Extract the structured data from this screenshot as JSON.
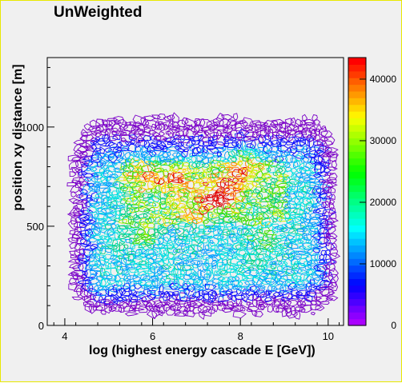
{
  "chart_data": {
    "type": "heatmap",
    "style": "contour",
    "title": "UnWeighted",
    "xlabel": "log (highest energy cascade E [GeV])",
    "ylabel": "position xy distance [m]",
    "xlim": [
      3.6,
      10.35
    ],
    "ylim": [
      0,
      1350
    ],
    "x_ticks": [
      "4",
      "6",
      "8",
      "10"
    ],
    "y_ticks": [
      "0",
      "500",
      "1000"
    ],
    "colorbar": {
      "range": [
        0,
        43500
      ],
      "ticks": [
        "0",
        "10000",
        "20000",
        "30000",
        "40000"
      ],
      "palette": [
        "#7a00c8",
        "#0a0aff",
        "#009cff",
        "#00e0e0",
        "#00d080",
        "#40e000",
        "#c8f000",
        "#ffd000",
        "#ff8000",
        "#e00000"
      ]
    },
    "peaks": [
      {
        "x": 7.45,
        "y": 650,
        "value": 43000
      },
      {
        "x": 6.6,
        "y": 720,
        "value": 33000
      },
      {
        "x": 8.1,
        "y": 820,
        "value": 32000
      },
      {
        "x": 5.8,
        "y": 750,
        "value": 30000
      },
      {
        "x": 7.8,
        "y": 700,
        "value": 31000
      },
      {
        "x": 5.8,
        "y": 480,
        "value": 28000
      },
      {
        "x": 6.8,
        "y": 560,
        "value": 26000
      },
      {
        "x": 8.6,
        "y": 450,
        "value": 24000
      },
      {
        "x": 8.5,
        "y": 320,
        "value": 22000
      }
    ]
  }
}
